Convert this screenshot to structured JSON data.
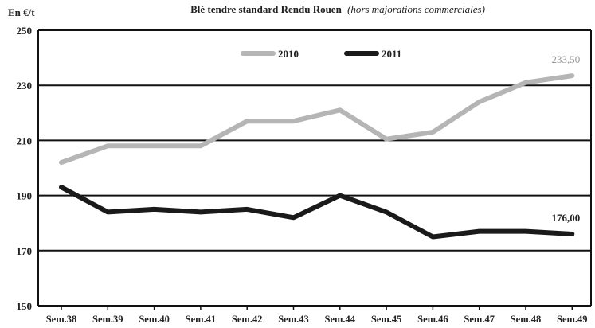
{
  "chart_data": {
    "type": "line",
    "title": "Blé tendre standard Rendu Rouen",
    "subtitle": "(hors majorations commerciales)",
    "ylabel": "En €/t",
    "xlabel": "",
    "categories": [
      "Sem.38",
      "Sem.39",
      "Sem.40",
      "Sem.41",
      "Sem.42",
      "Sem.43",
      "Sem.44",
      "Sem.45",
      "Sem.46",
      "Sem.47",
      "Sem.48",
      "Sem.49"
    ],
    "yticks": [
      "250",
      "230",
      "210",
      "190",
      "170",
      "150"
    ],
    "ylim": [
      150,
      250
    ],
    "grid": true,
    "legend_position": "top-center",
    "series": [
      {
        "name": "2010",
        "color": "#b5b5b5",
        "values": [
          202,
          208,
          208,
          208,
          217,
          217,
          221,
          210.5,
          213,
          224,
          231,
          233.5
        ],
        "end_label": "233,50"
      },
      {
        "name": "2011",
        "color": "#1a1a1a",
        "values": [
          193,
          184,
          185,
          184,
          185,
          182,
          190,
          184,
          175,
          177,
          177,
          176
        ],
        "end_label": "176,00"
      }
    ]
  }
}
